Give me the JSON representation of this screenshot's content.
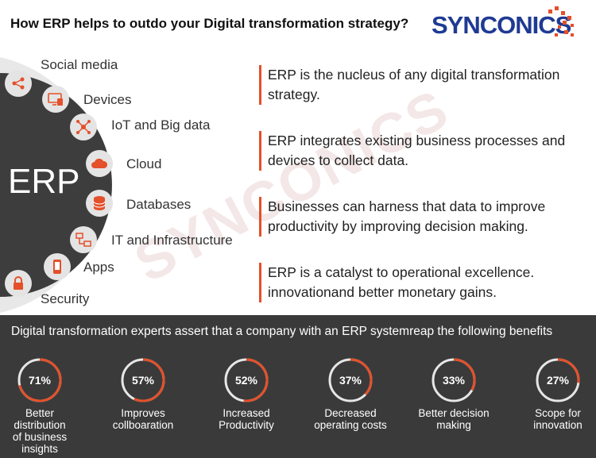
{
  "header": {
    "title": "How ERP helps to outdo your Digital transformation strategy?",
    "logo": "SYNCONICS"
  },
  "watermark": "SYNCONICS",
  "erp_label": "ERP",
  "items": [
    {
      "label": "Social media",
      "icon": "share-icon"
    },
    {
      "label": "Devices",
      "icon": "monitor-icon"
    },
    {
      "label": "IoT and Big data",
      "icon": "network-icon"
    },
    {
      "label": "Cloud",
      "icon": "cloud-icon"
    },
    {
      "label": "Databases",
      "icon": "database-icon"
    },
    {
      "label": "IT and Infrastructure",
      "icon": "infrastructure-icon"
    },
    {
      "label": "Apps",
      "icon": "phone-icon"
    },
    {
      "label": "Security",
      "icon": "lock-icon"
    }
  ],
  "statements": [
    "ERP is the nucleus of any digital transformation strategy.",
    "ERP integrates existing business processes and devices to collect data.",
    "Businesses can harness that data to improve productivity by improving decision making.",
    "ERP is a catalyst to operational excellence. innovationand better monetary gains."
  ],
  "benefits_title": "Digital transformation experts assert that a company with an ERP systemreap the following benefits",
  "benefits": [
    {
      "value": 71,
      "text": "71%",
      "label": "Better distribution of business insights"
    },
    {
      "value": 57,
      "text": "57%",
      "label": "Improves collboaration"
    },
    {
      "value": 52,
      "text": "52%",
      "label": "Increased Productivity"
    },
    {
      "value": 37,
      "text": "37%",
      "label": "Decreased operating costs"
    },
    {
      "value": 33,
      "text": "33%",
      "label": "Better decision making"
    },
    {
      "value": 27,
      "text": "27%",
      "label": "Scope for innovation"
    }
  ],
  "colors": {
    "accent": "#e4502a",
    "dark": "#3a3a3a",
    "brand": "#1f3a93"
  }
}
